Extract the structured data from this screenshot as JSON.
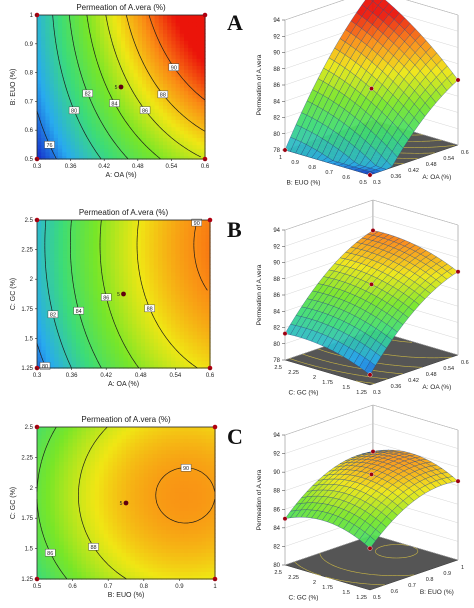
{
  "panels": [
    {
      "letter": "A",
      "contour": {
        "type": "contour",
        "title": "Permeation of A.vera (%)",
        "xlabel": "A: OA (%)",
        "ylabel": "B: EUO (%)",
        "xticks": [
          "0.3",
          "0.36",
          "0.42",
          "0.48",
          "0.54",
          "0.6"
        ],
        "yticks": [
          "0.5",
          "0.6",
          "0.7",
          "0.8",
          "0.9",
          "1"
        ],
        "xlim": [
          0.3,
          0.6
        ],
        "ylim": [
          0.5,
          1.0
        ],
        "contour_labels": [
          "76",
          "80",
          "82",
          "84",
          "86",
          "88",
          "90"
        ],
        "contour_values": [
          76,
          80,
          82,
          84,
          86,
          88,
          90
        ],
        "center_point": {
          "x": 0.45,
          "y": 0.75,
          "label": "5"
        }
      },
      "surface": {
        "type": "surface",
        "zlabel": "Permeation of A.vera",
        "zticks": [
          "78",
          "80",
          "82",
          "84",
          "86",
          "88",
          "90",
          "92",
          "94"
        ],
        "xlabel": "A: OA (%)",
        "ylabel": "B: EUO (%)",
        "xticks": [
          "0.3",
          "0.36",
          "0.42",
          "0.48",
          "0.54",
          "0.6"
        ],
        "yticks": [
          "0.5",
          "0.6",
          "0.7",
          "0.8",
          "0.9",
          "1"
        ],
        "zlim": [
          78,
          94
        ]
      }
    },
    {
      "letter": "B",
      "contour": {
        "type": "contour",
        "title": "Permeation of A.vera (%)",
        "xlabel": "A: OA (%)",
        "ylabel": "C: GC (%)",
        "xticks": [
          "0.3",
          "0.36",
          "0.42",
          "0.48",
          "0.54",
          "0.6"
        ],
        "yticks": [
          "1.25",
          "1.5",
          "1.75",
          "2",
          "2.25",
          "2.5"
        ],
        "xlim": [
          0.3,
          0.6
        ],
        "ylim": [
          1.25,
          2.5
        ],
        "contour_labels": [
          "80",
          "82",
          "84",
          "86",
          "88",
          "90"
        ],
        "contour_values": [
          80,
          82,
          84,
          86,
          88,
          90
        ],
        "center_point": {
          "x": 0.45,
          "y": 1.875,
          "label": "5"
        }
      },
      "surface": {
        "type": "surface",
        "zlabel": "Permeation of A.vera",
        "zticks": [
          "78",
          "80",
          "82",
          "84",
          "86",
          "88",
          "90",
          "92",
          "94"
        ],
        "xlabel": "A: OA (%)",
        "ylabel": "C: GC (%)",
        "xticks": [
          "0.3",
          "0.36",
          "0.42",
          "0.48",
          "0.54",
          "0.6"
        ],
        "yticks": [
          "1.25",
          "1.5",
          "1.75",
          "2",
          "2.25",
          "2.5"
        ],
        "zlim": [
          78,
          94
        ]
      }
    },
    {
      "letter": "C",
      "contour": {
        "type": "contour",
        "title": "Permeation of A.vera (%)",
        "xlabel": "B: EUO (%)",
        "ylabel": "C: GC (%)",
        "xticks": [
          "0.5",
          "0.6",
          "0.7",
          "0.8",
          "0.9",
          "1"
        ],
        "yticks": [
          "1.25",
          "1.5",
          "1.75",
          "2",
          "2.25",
          "2.5"
        ],
        "xlim": [
          0.5,
          1.0
        ],
        "ylim": [
          1.25,
          2.5
        ],
        "contour_labels": [
          "82",
          "84",
          "86",
          "88",
          "90"
        ],
        "contour_values": [
          82,
          84,
          86,
          88,
          90
        ],
        "center_point": {
          "x": 0.75,
          "y": 1.875,
          "label": "5"
        }
      },
      "surface": {
        "type": "surface",
        "zlabel": "Permeation of A.vera",
        "zticks": [
          "80",
          "82",
          "84",
          "86",
          "88",
          "90",
          "92",
          "94"
        ],
        "xlabel": "B: EUO (%)",
        "ylabel": "C: GC (%)",
        "xticks": [
          "0.5",
          "0.6",
          "0.7",
          "0.8",
          "0.9",
          "1"
        ],
        "yticks": [
          "1.25",
          "1.5",
          "1.75",
          "2",
          "2.25",
          "2.5"
        ],
        "zlim": [
          80,
          94
        ]
      }
    }
  ],
  "chart_data": [
    {
      "type": "heatmap",
      "title": "Permeation of A.vera (%)",
      "xlabel": "A: OA (%)",
      "ylabel": "B: EUO (%)",
      "xlim": [
        0.3,
        0.6
      ],
      "ylim": [
        0.5,
        1.0
      ],
      "contour_levels": [
        76,
        80,
        82,
        84,
        86,
        88,
        90
      ],
      "design_points": [
        {
          "x": 0.3,
          "y": 0.5
        },
        {
          "x": 0.6,
          "y": 0.5
        },
        {
          "x": 0.3,
          "y": 1.0
        },
        {
          "x": 0.6,
          "y": 1.0
        },
        {
          "x": 0.45,
          "y": 0.75
        }
      ]
    },
    {
      "type": "heatmap",
      "title": "Permeation of A.vera (%)",
      "xlabel": "A: OA (%)",
      "ylabel": "C: GC (%)",
      "xlim": [
        0.3,
        0.6
      ],
      "ylim": [
        1.25,
        2.5
      ],
      "contour_levels": [
        80,
        82,
        84,
        86,
        88,
        90
      ],
      "design_points": [
        {
          "x": 0.3,
          "y": 1.25
        },
        {
          "x": 0.6,
          "y": 1.25
        },
        {
          "x": 0.3,
          "y": 2.5
        },
        {
          "x": 0.6,
          "y": 2.5
        },
        {
          "x": 0.45,
          "y": 1.875
        }
      ]
    },
    {
      "type": "heatmap",
      "title": "Permeation of A.vera (%)",
      "xlabel": "B: EUO (%)",
      "ylabel": "C: GC (%)",
      "xlim": [
        0.5,
        1.0
      ],
      "ylim": [
        1.25,
        2.5
      ],
      "contour_levels": [
        82,
        84,
        86,
        88,
        90
      ],
      "design_points": [
        {
          "x": 0.5,
          "y": 1.25
        },
        {
          "x": 1.0,
          "y": 1.25
        },
        {
          "x": 0.5,
          "y": 2.5
        },
        {
          "x": 1.0,
          "y": 2.5
        },
        {
          "x": 0.75,
          "y": 1.875
        }
      ]
    }
  ]
}
